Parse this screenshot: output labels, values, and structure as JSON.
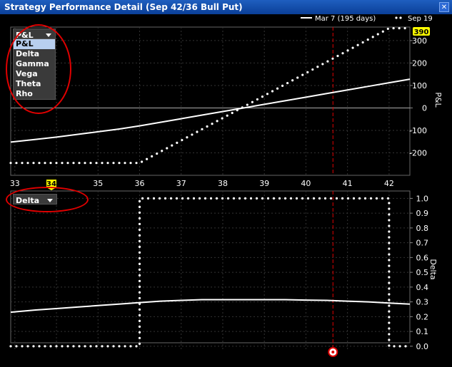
{
  "window": {
    "title": "Strategy Performance Detail (Sep 42/36 Bull Put)"
  },
  "legend": {
    "series_a": "Mar 7 (195 days)",
    "series_b": "Sep 19"
  },
  "top_panel": {
    "selector_value": "P&L",
    "menu_items": [
      "P&L",
      "Delta",
      "Gamma",
      "Vega",
      "Theta",
      "Rho"
    ],
    "selected_index": 0,
    "y_axis_title": "P&L",
    "y_ticks": [
      "300",
      "200",
      "100",
      "0",
      "-100",
      "-200"
    ],
    "marker_value": "390"
  },
  "bottom_panel": {
    "selector_value": "Delta",
    "y_axis_title": "Delta",
    "y_ticks": [
      "1.0",
      "0.9",
      "0.8",
      "0.7",
      "0.6",
      "0.5",
      "0.4",
      "0.3",
      "0.2",
      "0.1",
      "0.0"
    ]
  },
  "x_axis": {
    "ticks": [
      "33",
      "35",
      "36",
      "37",
      "38",
      "39",
      "40",
      "41",
      "42"
    ],
    "current_price_label": "34"
  },
  "colors": {
    "title_bg": "#1a58bb",
    "marker": "#ffff00",
    "cursor": "#e00000"
  },
  "chart_data": [
    {
      "type": "line",
      "panel": "top",
      "ylabel": "P&L",
      "xlim": [
        32.9,
        42.5
      ],
      "ylim": [
        -300,
        360
      ],
      "series": [
        {
          "name": "Mar 7 (195 days)",
          "style": "solid",
          "x": [
            32.9,
            33.5,
            34,
            34.5,
            35,
            35.5,
            36,
            36.5,
            37,
            37.5,
            38,
            38.5,
            39,
            39.5,
            40,
            40.5,
            41,
            41.5,
            42,
            42.5
          ],
          "y": [
            -152,
            -140,
            -130,
            -118,
            -106,
            -94,
            -80,
            -64,
            -48,
            -32,
            -16,
            0,
            16,
            32,
            48,
            64,
            80,
            96,
            112,
            128
          ]
        },
        {
          "name": "Sep 19",
          "style": "dotted",
          "x": [
            32.9,
            36,
            42,
            42.5
          ],
          "y": [
            -245,
            -245,
            355,
            355
          ]
        }
      ],
      "reference_lines": {
        "zero_y": 0,
        "cursor_x": 40.65
      }
    },
    {
      "type": "line",
      "panel": "bottom",
      "ylabel": "Delta",
      "xlim": [
        32.9,
        42.5
      ],
      "ylim": [
        -0.02,
        1.05
      ],
      "series": [
        {
          "name": "Mar 7 (195 days)",
          "style": "solid",
          "x": [
            32.9,
            33.5,
            34,
            34.5,
            35,
            35.5,
            36,
            36.5,
            37,
            37.5,
            38,
            38.5,
            39,
            39.5,
            40,
            40.5,
            41,
            41.5,
            42,
            42.5
          ],
          "y": [
            0.23,
            0.245,
            0.255,
            0.265,
            0.275,
            0.285,
            0.295,
            0.305,
            0.31,
            0.315,
            0.315,
            0.315,
            0.315,
            0.315,
            0.312,
            0.31,
            0.305,
            0.3,
            0.292,
            0.285
          ]
        },
        {
          "name": "Sep 19",
          "style": "dotted",
          "x": [
            32.9,
            36,
            36,
            42,
            42,
            42.5
          ],
          "y": [
            0,
            0,
            1,
            1,
            0,
            0
          ]
        }
      ],
      "reference_lines": {
        "cursor_x": 40.65
      }
    }
  ]
}
